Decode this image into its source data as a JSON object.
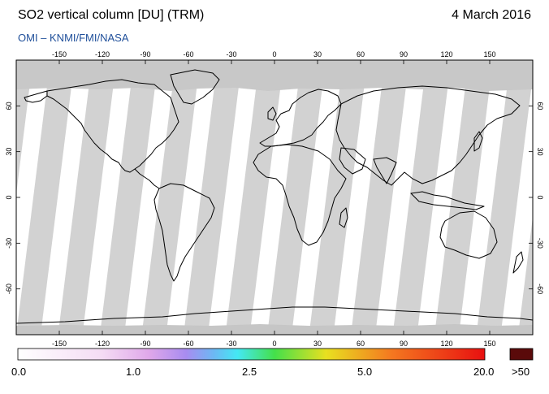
{
  "header": {
    "title": "SO2 vertical column [DU] (TRM)",
    "date": "4 March 2016",
    "credit": "OMI  –  KNMI/FMI/NASA"
  },
  "map": {
    "lon_ticks": [
      "-150",
      "-120",
      "-90",
      "-60",
      "-30",
      "0",
      "30",
      "60",
      "90",
      "120",
      "150"
    ],
    "lat_ticks": [
      "60",
      "30",
      "0",
      "-30",
      "-60"
    ],
    "lon_range": [
      -180,
      180
    ],
    "lat_range": [
      -90,
      90
    ],
    "colors": {
      "no_data": "#c8c8c8",
      "orbit_swath": "#d2d2d2",
      "orbit_shadow": "#9a9a9a",
      "polar_night": "#c6c6c6",
      "coastline": "#000000"
    },
    "icon": "world-map-equirectangular"
  },
  "colorbar": {
    "labels": [
      "0.0",
      "1.0",
      "2.5",
      "5.0",
      "20.0",
      ">50"
    ],
    "gradient_stops": [
      "#ffffff",
      "#f4dcf4",
      "#e0a8ea",
      "#a88cf0",
      "#44e8f4",
      "#44e04a",
      "#e8e020",
      "#f47820",
      "#e81010"
    ],
    "overflow_color": "#5a0a0a"
  }
}
